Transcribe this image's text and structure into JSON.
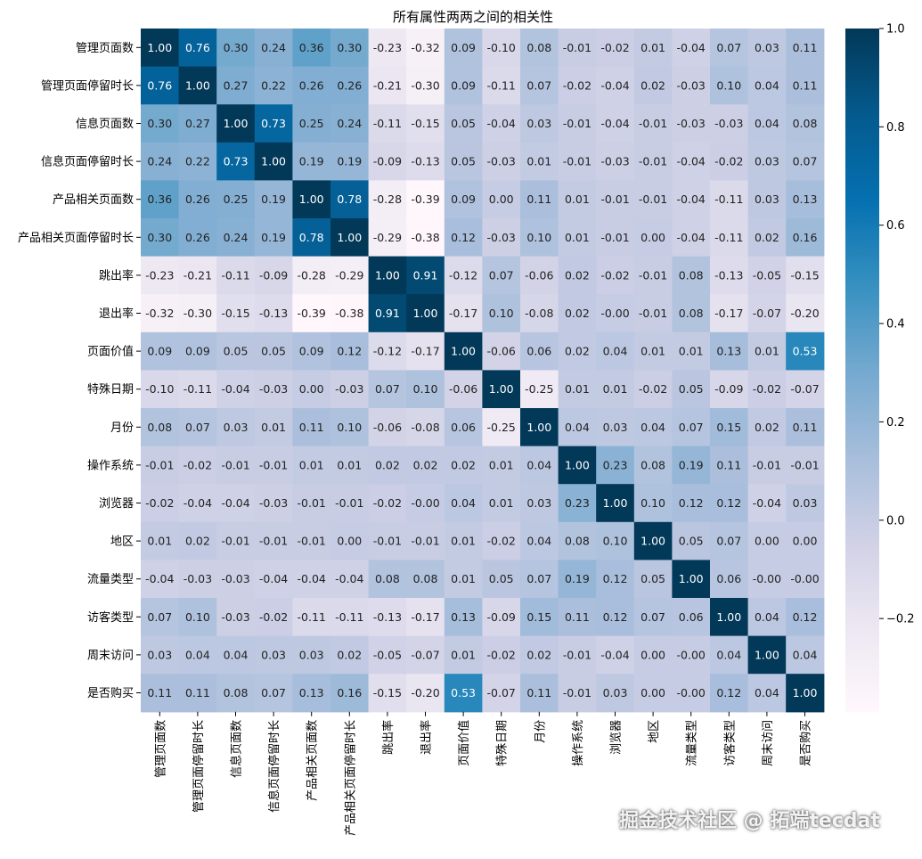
{
  "chart_data": {
    "type": "heatmap",
    "title": "所有属性两两之间的相关性",
    "labels": [
      "管理页面数",
      "管理页面停留时长",
      "信息页面数",
      "信息页面停留时长",
      "产品相关页面数",
      "产品相关页面停留时长",
      "跳出率",
      "退出率",
      "页面价值",
      "特殊日期",
      "月份",
      "操作系统",
      "浏览器",
      "地区",
      "流量类型",
      "访客类型",
      "周末访问",
      "是否购买"
    ],
    "matrix": [
      [
        1.0,
        0.76,
        0.3,
        0.24,
        0.36,
        0.3,
        -0.23,
        -0.32,
        0.09,
        -0.1,
        0.08,
        -0.01,
        -0.02,
        0.01,
        -0.04,
        0.07,
        0.03,
        0.11
      ],
      [
        0.76,
        1.0,
        0.27,
        0.22,
        0.26,
        0.26,
        -0.21,
        -0.3,
        0.09,
        -0.11,
        0.07,
        -0.02,
        -0.04,
        0.02,
        -0.03,
        0.1,
        0.04,
        0.11
      ],
      [
        0.3,
        0.27,
        1.0,
        0.73,
        0.25,
        0.24,
        -0.11,
        -0.15,
        0.05,
        -0.04,
        0.03,
        -0.01,
        -0.04,
        -0.01,
        -0.03,
        -0.03,
        0.04,
        0.08
      ],
      [
        0.24,
        0.22,
        0.73,
        1.0,
        0.19,
        0.19,
        -0.09,
        -0.13,
        0.05,
        -0.03,
        0.01,
        -0.01,
        -0.03,
        -0.01,
        -0.04,
        -0.02,
        0.03,
        0.07
      ],
      [
        0.36,
        0.26,
        0.25,
        0.19,
        1.0,
        0.78,
        -0.28,
        -0.39,
        0.09,
        0.0,
        0.11,
        0.01,
        -0.01,
        -0.01,
        -0.04,
        -0.11,
        0.03,
        0.13
      ],
      [
        0.3,
        0.26,
        0.24,
        0.19,
        0.78,
        1.0,
        -0.29,
        -0.38,
        0.12,
        -0.03,
        0.1,
        0.01,
        -0.01,
        0.0,
        -0.04,
        -0.11,
        0.02,
        0.16
      ],
      [
        -0.23,
        -0.21,
        -0.11,
        -0.09,
        -0.28,
        -0.29,
        1.0,
        0.91,
        -0.12,
        0.07,
        -0.06,
        0.02,
        -0.02,
        -0.01,
        0.08,
        -0.13,
        -0.05,
        -0.15
      ],
      [
        -0.32,
        -0.3,
        -0.15,
        -0.13,
        -0.39,
        -0.38,
        0.91,
        1.0,
        -0.17,
        0.1,
        -0.08,
        0.02,
        -0.0,
        -0.01,
        0.08,
        -0.17,
        -0.07,
        -0.2
      ],
      [
        0.09,
        0.09,
        0.05,
        0.05,
        0.09,
        0.12,
        -0.12,
        -0.17,
        1.0,
        -0.06,
        0.06,
        0.02,
        0.04,
        0.01,
        0.01,
        0.13,
        0.01,
        0.53
      ],
      [
        -0.1,
        -0.11,
        -0.04,
        -0.03,
        0.0,
        -0.03,
        0.07,
        0.1,
        -0.06,
        1.0,
        -0.25,
        0.01,
        0.01,
        -0.02,
        0.05,
        -0.09,
        -0.02,
        -0.07
      ],
      [
        0.08,
        0.07,
        0.03,
        0.01,
        0.11,
        0.1,
        -0.06,
        -0.08,
        0.06,
        -0.25,
        1.0,
        0.04,
        0.03,
        0.04,
        0.07,
        0.15,
        0.02,
        0.11
      ],
      [
        -0.01,
        -0.02,
        -0.01,
        -0.01,
        0.01,
        0.01,
        0.02,
        0.02,
        0.02,
        0.01,
        0.04,
        1.0,
        0.23,
        0.08,
        0.19,
        0.11,
        -0.01,
        -0.01
      ],
      [
        -0.02,
        -0.04,
        -0.04,
        -0.03,
        -0.01,
        -0.01,
        -0.02,
        -0.0,
        0.04,
        0.01,
        0.03,
        0.23,
        1.0,
        0.1,
        0.12,
        0.12,
        -0.04,
        0.03
      ],
      [
        0.01,
        0.02,
        -0.01,
        -0.01,
        -0.01,
        0.0,
        -0.01,
        -0.01,
        0.01,
        -0.02,
        0.04,
        0.08,
        0.1,
        1.0,
        0.05,
        0.07,
        0.0,
        0.0
      ],
      [
        -0.04,
        -0.03,
        -0.03,
        -0.04,
        -0.04,
        -0.04,
        0.08,
        0.08,
        0.01,
        0.05,
        0.07,
        0.19,
        0.12,
        0.05,
        1.0,
        0.06,
        -0.0,
        -0.0
      ],
      [
        0.07,
        0.1,
        -0.03,
        -0.02,
        -0.11,
        -0.11,
        -0.13,
        -0.17,
        0.13,
        -0.09,
        0.15,
        0.11,
        0.12,
        0.07,
        0.06,
        1.0,
        0.04,
        0.12
      ],
      [
        0.03,
        0.04,
        0.04,
        0.03,
        0.03,
        0.02,
        -0.05,
        -0.07,
        0.01,
        -0.02,
        0.02,
        -0.01,
        -0.04,
        0.0,
        -0.0,
        0.04,
        1.0,
        0.04
      ],
      [
        0.11,
        0.11,
        0.08,
        0.07,
        0.13,
        0.16,
        -0.15,
        -0.2,
        0.53,
        -0.07,
        0.11,
        -0.01,
        0.03,
        0.0,
        -0.0,
        0.12,
        0.04,
        1.0
      ]
    ],
    "value_format": "%.2f",
    "color_range": [
      -0.39,
      1.0
    ],
    "colormap": "PuBu",
    "colors": [
      "#fff7fb",
      "#ece7f2",
      "#d0d1e6",
      "#a6bddb",
      "#74a9cf",
      "#3690c0",
      "#0570b0",
      "#045a8d",
      "#023858"
    ],
    "colorbar_ticks": [
      "1.0",
      "0.8",
      "0.6",
      "0.4",
      "0.2",
      "0.0",
      "−0.2"
    ],
    "colorbar_tick_values": [
      1.0,
      0.8,
      0.6,
      0.4,
      0.2,
      0.0,
      -0.2
    ]
  },
  "watermark": "掘金技术社区 @ 拓端tecdat"
}
